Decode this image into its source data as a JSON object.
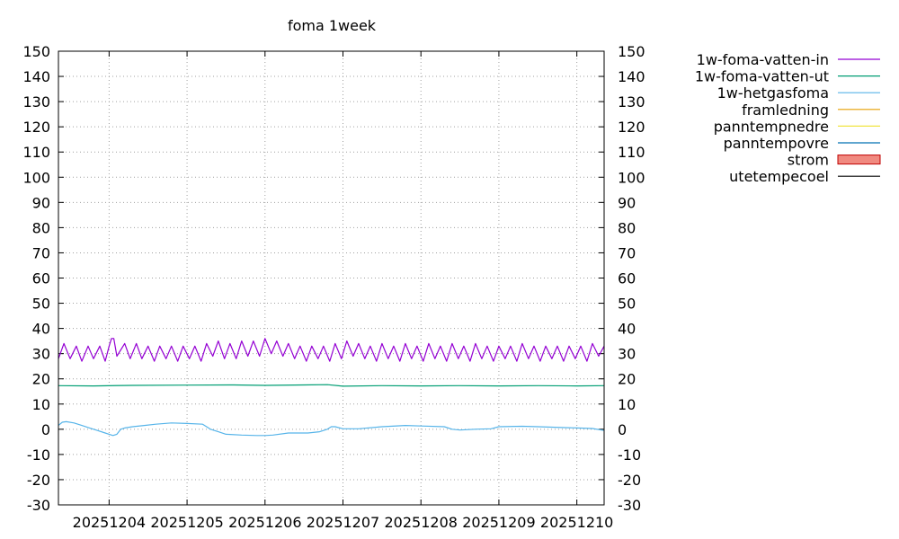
{
  "chart_data": {
    "type": "line",
    "title": "foma 1week",
    "xlabel": "",
    "ylabel": "",
    "ylim": [
      -30,
      150
    ],
    "y_ticks": [
      -30,
      -20,
      -10,
      0,
      10,
      20,
      30,
      40,
      50,
      60,
      70,
      80,
      90,
      100,
      110,
      120,
      130,
      140,
      150
    ],
    "y_tick_labels": [
      "-30",
      "-20",
      "-10",
      "0",
      "10",
      "20",
      "30",
      "40",
      "50",
      "60",
      "70",
      "80",
      "90",
      "100",
      "110",
      "120",
      "130",
      "140",
      "150"
    ],
    "x_unit": "days",
    "xlim": [
      -0.65,
      6.35
    ],
    "x_ticks": [
      0,
      1,
      2,
      3,
      4,
      5,
      6
    ],
    "x_tick_labels": [
      "20251204",
      "20251205",
      "20251206",
      "20251207",
      "20251208",
      "20251209",
      "20251210"
    ],
    "grid": true,
    "legend_position": "outside-right-top",
    "series": [
      {
        "name": "1w-foma-vatten-in",
        "color": "#9400d3",
        "style": "line",
        "x": [
          -0.65,
          -0.58,
          -0.5,
          -0.42,
          -0.35,
          -0.27,
          -0.2,
          -0.12,
          -0.05,
          0.0,
          0.03,
          0.06,
          0.1,
          0.2,
          0.27,
          0.35,
          0.42,
          0.5,
          0.58,
          0.65,
          0.73,
          0.8,
          0.88,
          0.95,
          1.03,
          1.1,
          1.18,
          1.25,
          1.33,
          1.4,
          1.48,
          1.55,
          1.63,
          1.7,
          1.78,
          1.85,
          1.93,
          2.0,
          2.08,
          2.15,
          2.23,
          2.3,
          2.38,
          2.45,
          2.53,
          2.6,
          2.68,
          2.75,
          2.83,
          2.9,
          2.98,
          3.05,
          3.13,
          3.2,
          3.28,
          3.35,
          3.43,
          3.5,
          3.58,
          3.65,
          3.73,
          3.8,
          3.88,
          3.95,
          4.03,
          4.1,
          4.18,
          4.25,
          4.33,
          4.4,
          4.48,
          4.55,
          4.63,
          4.7,
          4.78,
          4.85,
          4.93,
          5.0,
          5.08,
          5.15,
          5.23,
          5.3,
          5.38,
          5.45,
          5.53,
          5.6,
          5.68,
          5.75,
          5.83,
          5.9,
          5.98,
          6.05,
          6.13,
          6.2,
          6.28,
          6.35
        ],
        "y": [
          28,
          34,
          28,
          33,
          27,
          33,
          28,
          33,
          27,
          33,
          36,
          36,
          29,
          34,
          28,
          34,
          28,
          33,
          27,
          33,
          28,
          33,
          27,
          33,
          28,
          33,
          27,
          34,
          29,
          35,
          28,
          34,
          28,
          35,
          29,
          35,
          29,
          36,
          30,
          35,
          29,
          34,
          28,
          33,
          27,
          33,
          28,
          33,
          27,
          34,
          28,
          35,
          29,
          34,
          28,
          33,
          27,
          34,
          28,
          33,
          27,
          34,
          28,
          33,
          27,
          34,
          28,
          33,
          27,
          34,
          28,
          33,
          27,
          34,
          28,
          33,
          27,
          33,
          28,
          33,
          27,
          34,
          28,
          33,
          27,
          33,
          28,
          33,
          27,
          33,
          28,
          33,
          27,
          34,
          29,
          33
        ]
      },
      {
        "name": "1w-foma-vatten-ut",
        "color": "#009e73",
        "style": "line",
        "x": [
          -0.65,
          -0.2,
          0.3,
          1.0,
          1.6,
          2.0,
          2.5,
          2.8,
          3.0,
          3.5,
          4.0,
          4.5,
          5.0,
          5.5,
          6.0,
          6.35
        ],
        "y": [
          17.3,
          17.2,
          17.4,
          17.5,
          17.6,
          17.4,
          17.6,
          17.7,
          17.1,
          17.3,
          17.2,
          17.3,
          17.2,
          17.3,
          17.2,
          17.3
        ]
      },
      {
        "name": "1w-hetgasfoma",
        "color": "#56b4e9",
        "style": "line",
        "x": [
          -0.65,
          -0.6,
          -0.55,
          -0.45,
          -0.35,
          -0.25,
          -0.15,
          -0.05,
          0.0,
          0.05,
          0.1,
          0.15,
          0.2,
          0.3,
          0.45,
          0.6,
          0.8,
          1.0,
          1.2,
          1.3,
          1.4,
          1.5,
          1.7,
          1.9,
          2.0,
          2.1,
          2.3,
          2.4,
          2.55,
          2.7,
          2.8,
          2.85,
          2.9,
          3.0,
          3.2,
          3.5,
          3.8,
          4.0,
          4.3,
          4.4,
          4.5,
          4.7,
          4.9,
          5.0,
          5.3,
          5.5,
          6.0,
          6.2,
          6.35
        ],
        "y": [
          1.5,
          2.8,
          3,
          2.5,
          1.5,
          0.5,
          -0.5,
          -1.5,
          -2,
          -2.5,
          -2,
          0,
          0.5,
          1,
          1.5,
          2,
          2.5,
          2.3,
          2,
          0,
          -1,
          -2,
          -2.3,
          -2.5,
          -2.5,
          -2.3,
          -1.5,
          -1.5,
          -1.5,
          -1,
          0,
          1,
          1,
          0.2,
          0.2,
          1,
          1.5,
          1.3,
          1,
          0,
          -0.3,
          0,
          0.2,
          1,
          1.2,
          1,
          0.5,
          0.3,
          -0.5
        ]
      },
      {
        "name": "framledning",
        "color": "#e69f00",
        "style": "line",
        "x": [],
        "y": []
      },
      {
        "name": "panntempnedre",
        "color": "#f0e442",
        "style": "line",
        "x": [],
        "y": []
      },
      {
        "name": "panntempovre",
        "color": "#0072b2",
        "style": "line",
        "x": [],
        "y": []
      },
      {
        "name": "strom",
        "color": "#f08a80",
        "stroke": "#c00000",
        "style": "box",
        "x": [],
        "y": []
      },
      {
        "name": "utetempecoel",
        "color": "#000000",
        "style": "line",
        "x": [],
        "y": []
      }
    ]
  }
}
